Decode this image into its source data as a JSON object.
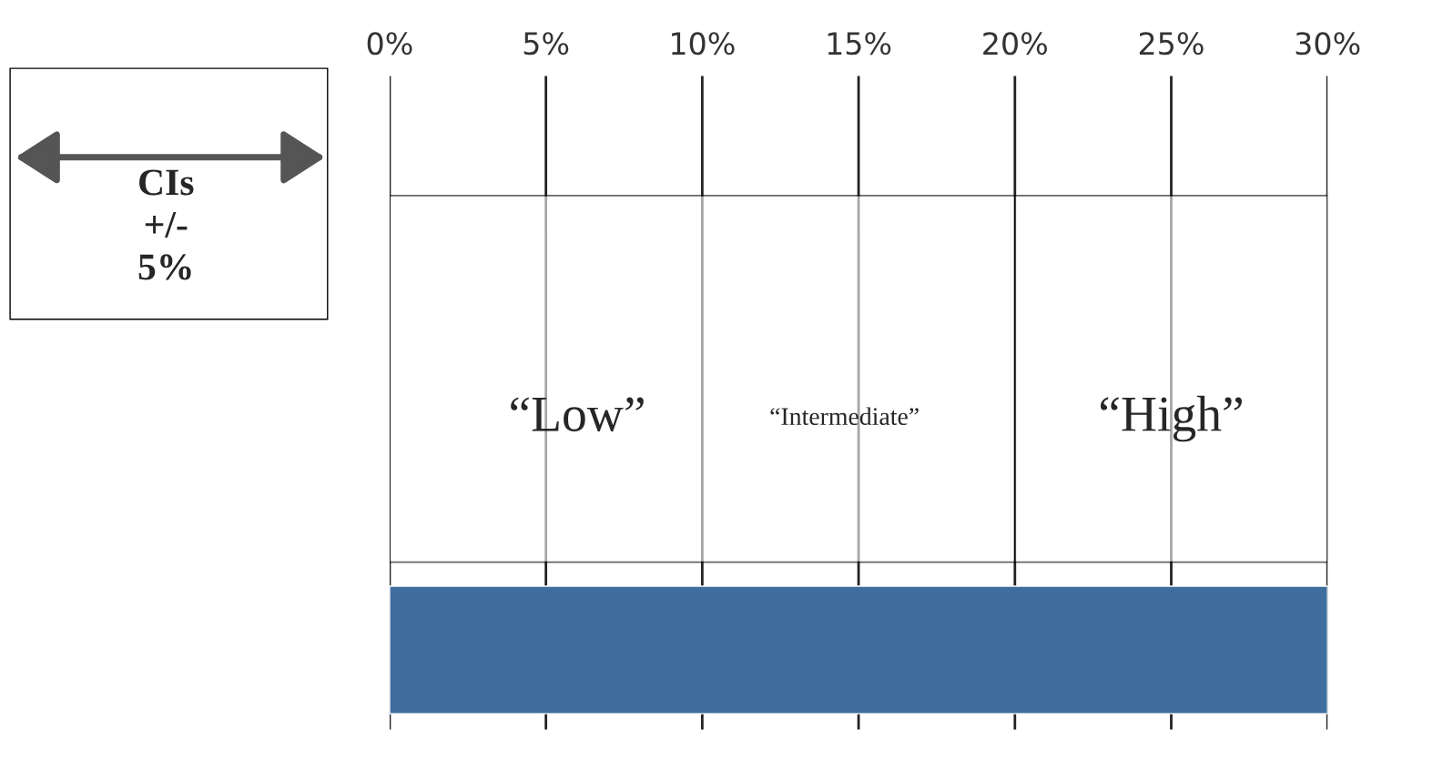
{
  "chart_data": {
    "type": "bar",
    "orientation": "horizontal",
    "categories": [
      null
    ],
    "values": [
      30
    ],
    "color": "#3f6d9e",
    "xlim": [
      0,
      30
    ],
    "xticks": [
      {
        "value": 0,
        "label": "0%"
      },
      {
        "value": 5,
        "label": "5%"
      },
      {
        "value": 10,
        "label": "10%"
      },
      {
        "value": 15,
        "label": "15%"
      },
      {
        "value": 20,
        "label": "20%"
      },
      {
        "value": 25,
        "label": "25%"
      },
      {
        "value": 30,
        "label": "30%"
      }
    ],
    "grid": "x",
    "bands": [
      {
        "axis": "x",
        "from": 0,
        "to": 20,
        "label": "“Low”",
        "color": "#ffffff"
      },
      {
        "axis": "x",
        "from": 20,
        "to": 30,
        "label": "“High”",
        "color": "#ffffff"
      }
    ],
    "annotations": [
      "“Intermediate”",
      "CIs\n+/-\n5%"
    ]
  }
}
